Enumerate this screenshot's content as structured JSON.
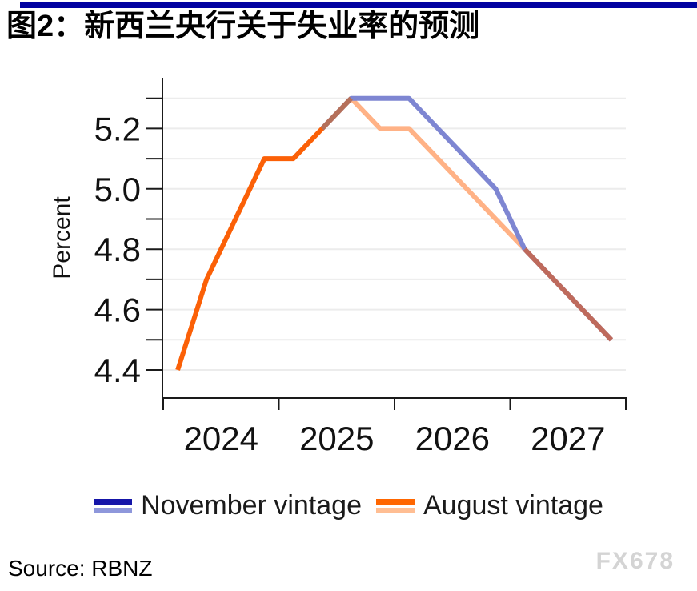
{
  "colors": {
    "top_bar": "#0202A0",
    "axis": "#1a1a1a",
    "grid": "#ececec"
  },
  "chart_data": {
    "type": "line",
    "title": "图2：新西兰央行关于失业率的预测",
    "ylabel": "Percent",
    "categories": [
      "2024Q1",
      "2024Q2",
      "2024Q3",
      "2024Q4",
      "2025Q1",
      "2025Q2",
      "2025Q3",
      "2025Q4",
      "2026Q1",
      "2026Q2",
      "2026Q3",
      "2026Q4",
      "2027Q1",
      "2027Q2",
      "2027Q3",
      "2027Q4"
    ],
    "x_tick_labels": [
      "2024",
      "2025",
      "2026",
      "2027"
    ],
    "y_tick_values_minor": [
      4.4,
      4.5,
      4.6,
      4.7,
      4.8,
      4.9,
      5.0,
      5.1,
      5.2,
      5.3
    ],
    "y_tick_labels": [
      "4.4",
      "4.6",
      "4.8",
      "5.0",
      "5.2"
    ],
    "y_tick_label_values": [
      4.4,
      4.6,
      4.8,
      5.0,
      5.2
    ],
    "ylim": [
      4.31,
      5.37
    ],
    "xlim_years": [
      2024,
      2028
    ],
    "grid": "horizontal",
    "legend_position": "bottom",
    "series": [
      {
        "name": "November vintage",
        "line_color": "#7E86D2",
        "values": [
          null,
          null,
          null,
          null,
          null,
          5.2,
          5.3,
          5.3,
          5.3,
          5.2,
          5.1,
          5.0,
          4.8,
          4.7,
          4.6,
          4.5
        ]
      },
      {
        "name": "August vintage",
        "history_color": "#FB6007",
        "forecast_color": "#FFB286",
        "history_end": "2025Q3",
        "values": [
          4.4,
          4.7,
          4.9,
          5.1,
          5.1,
          5.2,
          5.3,
          5.2,
          5.2,
          5.1,
          5.0,
          4.9,
          4.8,
          4.7,
          4.6,
          4.5
        ]
      }
    ],
    "overlap_segments": [
      {
        "from": "2025Q2",
        "to": "2025Q3",
        "color": "#B5705A"
      },
      {
        "from": "2027Q1",
        "to": "2027Q4",
        "color": "#BE6A5C"
      }
    ]
  },
  "legend": {
    "items": [
      {
        "label": "November vintage",
        "swatch_top": "#1515A8",
        "swatch_bottom": "#8E97DB"
      },
      {
        "label": "August vintage",
        "swatch_top": "#FF6600",
        "swatch_bottom": "#FFBE93"
      }
    ]
  },
  "footer": {
    "source": "Source: RBNZ",
    "watermark": "FX678"
  }
}
